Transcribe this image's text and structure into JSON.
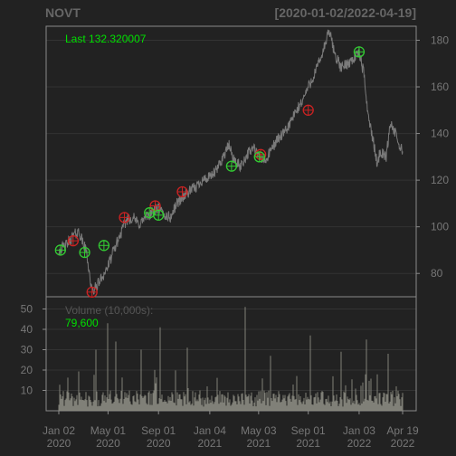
{
  "header": {
    "symbol": "NOVT",
    "date_range": "[2020-01-02/2022-04-19]"
  },
  "last_label": "Last 132.320007",
  "volume_label": "Volume (10,000s):",
  "volume_value": "79,600",
  "colors": {
    "background": "#222222",
    "frame": "#8a8a8a",
    "grid": "#333333",
    "price_line": "#7a7a7a",
    "axis_text": "#777777",
    "last_text": "#00e000",
    "volume_bar": "#8c8c82",
    "buy_marker": "#33cc33",
    "sell_marker": "#cc2222"
  },
  "chart_data": [
    {
      "type": "line",
      "title": "NOVT",
      "subtitle": "[2020-01-02/2022-04-19]",
      "x_ticks": [
        {
          "date": "2020-01-02",
          "label": [
            "Jan 02",
            "2020"
          ]
        },
        {
          "date": "2020-05-01",
          "label": [
            "May 01",
            "2020"
          ]
        },
        {
          "date": "2020-09-01",
          "label": [
            "Sep 01",
            "2020"
          ]
        },
        {
          "date": "2021-01-04",
          "label": [
            "Jan 04",
            "2021"
          ]
        },
        {
          "date": "2021-05-03",
          "label": [
            "May 03",
            "2021"
          ]
        },
        {
          "date": "2021-09-01",
          "label": [
            "Sep 01",
            "2021"
          ]
        },
        {
          "date": "2022-01-03",
          "label": [
            "Jan 03",
            "2022"
          ]
        },
        {
          "date": "2022-04-19",
          "label": [
            "Apr 19",
            "2022"
          ]
        }
      ],
      "y_ticks": [
        80,
        100,
        120,
        140,
        160,
        180
      ],
      "ylim": [
        70,
        186
      ],
      "series": [
        {
          "values": [
            [
              "2020-01-02",
              90
            ],
            [
              "2020-01-20",
              92
            ],
            [
              "2020-02-05",
              96
            ],
            [
              "2020-02-20",
              98
            ],
            [
              "2020-03-01",
              93
            ],
            [
              "2020-03-10",
              89
            ],
            [
              "2020-03-18",
              78
            ],
            [
              "2020-03-23",
              72
            ],
            [
              "2020-04-01",
              74
            ],
            [
              "2020-04-15",
              78
            ],
            [
              "2020-05-01",
              83
            ],
            [
              "2020-05-15",
              90
            ],
            [
              "2020-06-01",
              97
            ],
            [
              "2020-06-15",
              103
            ],
            [
              "2020-07-01",
              104
            ],
            [
              "2020-07-15",
              101
            ],
            [
              "2020-08-01",
              104
            ],
            [
              "2020-08-15",
              106
            ],
            [
              "2020-09-01",
              108
            ],
            [
              "2020-09-15",
              105
            ],
            [
              "2020-10-01",
              104
            ],
            [
              "2020-10-15",
              110
            ],
            [
              "2020-11-01",
              113
            ],
            [
              "2020-11-15",
              115
            ],
            [
              "2020-12-01",
              117
            ],
            [
              "2020-12-15",
              120
            ],
            [
              "2021-01-04",
              121
            ],
            [
              "2021-01-20",
              124
            ],
            [
              "2021-02-05",
              130
            ],
            [
              "2021-02-20",
              135
            ],
            [
              "2021-03-05",
              128
            ],
            [
              "2021-03-20",
              126
            ],
            [
              "2021-04-05",
              131
            ],
            [
              "2021-04-20",
              134
            ],
            [
              "2021-05-03",
              130
            ],
            [
              "2021-05-20",
              128
            ],
            [
              "2021-06-05",
              134
            ],
            [
              "2021-06-20",
              138
            ],
            [
              "2021-07-05",
              140
            ],
            [
              "2021-07-20",
              145
            ],
            [
              "2021-08-05",
              150
            ],
            [
              "2021-08-20",
              155
            ],
            [
              "2021-09-01",
              160
            ],
            [
              "2021-09-15",
              165
            ],
            [
              "2021-10-01",
              172
            ],
            [
              "2021-10-12",
              178
            ],
            [
              "2021-10-22",
              184
            ],
            [
              "2021-11-05",
              174
            ],
            [
              "2021-11-20",
              168
            ],
            [
              "2021-12-05",
              170
            ],
            [
              "2021-12-20",
              172
            ],
            [
              "2022-01-03",
              175
            ],
            [
              "2022-01-15",
              165
            ],
            [
              "2022-01-25",
              148
            ],
            [
              "2022-02-05",
              138
            ],
            [
              "2022-02-15",
              128
            ],
            [
              "2022-02-25",
              132
            ],
            [
              "2022-03-10",
              130
            ],
            [
              "2022-03-20",
              145
            ],
            [
              "2022-04-01",
              140
            ],
            [
              "2022-04-10",
              135
            ],
            [
              "2022-04-19",
              132.32
            ]
          ]
        }
      ],
      "buy_markers": [
        [
          "2020-01-06",
          90
        ],
        [
          "2020-03-05",
          89
        ],
        [
          "2020-04-21",
          92
        ],
        [
          "2020-08-10",
          106
        ],
        [
          "2020-09-01",
          105
        ],
        [
          "2021-02-26",
          126
        ],
        [
          "2021-05-05",
          130
        ],
        [
          "2022-01-03",
          175
        ]
      ],
      "sell_markers": [
        [
          "2020-02-06",
          94
        ],
        [
          "2020-03-23",
          72
        ],
        [
          "2020-06-10",
          104
        ],
        [
          "2020-08-24",
          109
        ],
        [
          "2020-10-29",
          115
        ],
        [
          "2021-09-01",
          150
        ],
        [
          "2021-05-08",
          131
        ]
      ]
    },
    {
      "type": "bar",
      "title": "Volume (10,000s):",
      "y_ticks": [
        10,
        20,
        30,
        40,
        50
      ],
      "ylim": [
        0,
        56
      ],
      "series": [
        {
          "values": [
            [
              "2020-04-01",
              30
            ],
            [
              "2020-05-01",
              43
            ],
            [
              "2020-05-20",
              34
            ],
            [
              "2020-07-20",
              30
            ],
            [
              "2020-09-05",
              41
            ],
            [
              "2020-11-10",
              31
            ],
            [
              "2021-04-01",
              51
            ],
            [
              "2021-06-01",
              27
            ],
            [
              "2021-09-05",
              37
            ],
            [
              "2021-11-20",
              29
            ],
            [
              "2022-01-20",
              35
            ],
            [
              "2022-03-15",
              28
            ]
          ]
        }
      ]
    }
  ]
}
